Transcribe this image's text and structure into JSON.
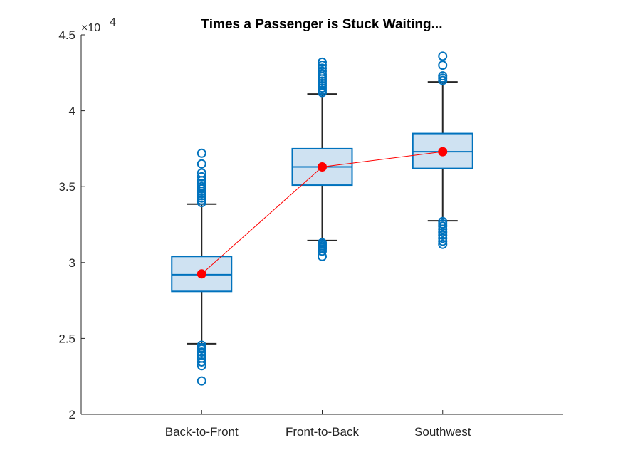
{
  "chart_data": {
    "type": "box",
    "title": "Times a Passenger is Stuck Waiting...",
    "xlabel": "",
    "ylabel": "",
    "y_exponent_label": "×10",
    "y_exponent_power": "4",
    "ylim": [
      2.0,
      4.5
    ],
    "y_ticks": [
      2.0,
      2.5,
      3.0,
      3.5,
      4.0,
      4.5
    ],
    "y_tick_labels": [
      "2",
      "2.5",
      "3",
      "3.5",
      "4",
      "4.5"
    ],
    "categories": [
      "Back-to-Front",
      "Front-to-Back",
      "Southwest"
    ],
    "box_color": "#0072BD",
    "box_fill": "#cfe2f2",
    "mean_color": "#ff0000",
    "grid": false,
    "boxes": [
      {
        "name": "Back-to-Front",
        "whisker_low": 2.465,
        "q1": 2.81,
        "median": 2.92,
        "q3": 3.04,
        "whisker_high": 3.385,
        "mean": 2.925,
        "outliers": [
          2.22,
          2.32,
          2.345,
          2.37,
          2.39,
          2.41,
          2.43,
          2.44,
          2.455,
          3.395,
          3.41,
          3.425,
          3.44,
          3.455,
          3.47,
          3.485,
          3.5,
          3.52,
          3.54,
          3.565,
          3.59,
          3.65,
          3.72
        ]
      },
      {
        "name": "Front-to-Back",
        "whisker_low": 3.145,
        "q1": 3.51,
        "median": 3.63,
        "q3": 3.75,
        "whisker_high": 4.11,
        "mean": 3.63,
        "outliers": [
          3.04,
          3.075,
          3.09,
          3.1,
          3.11,
          3.12,
          3.13,
          4.12,
          4.135,
          4.15,
          4.165,
          4.18,
          4.195,
          4.21,
          4.225,
          4.24,
          4.26,
          4.28,
          4.3,
          4.32
        ]
      },
      {
        "name": "Southwest",
        "whisker_low": 3.275,
        "q1": 3.62,
        "median": 3.73,
        "q3": 3.85,
        "whisker_high": 4.19,
        "mean": 3.73,
        "outliers": [
          3.12,
          3.14,
          3.16,
          3.18,
          3.2,
          3.22,
          3.24,
          3.255,
          3.27,
          4.2,
          4.215,
          4.23,
          4.3,
          4.36
        ]
      }
    ]
  }
}
